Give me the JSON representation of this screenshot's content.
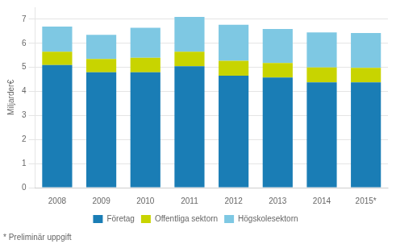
{
  "chart_data": {
    "type": "bar",
    "stacked": true,
    "categories": [
      "2008",
      "2009",
      "2010",
      "2011",
      "2012",
      "2013",
      "2014",
      "2015*"
    ],
    "series": [
      {
        "name": "Företag",
        "color": "#1a7db5",
        "values": [
          5.1,
          4.8,
          4.8,
          5.05,
          4.65,
          4.58,
          4.38,
          4.38
        ]
      },
      {
        "name": "Offentliga sektorn",
        "color": "#c8d400",
        "values": [
          0.55,
          0.55,
          0.6,
          0.6,
          0.62,
          0.6,
          0.62,
          0.6
        ]
      },
      {
        "name": "Högskolesektorn",
        "color": "#7ec8e3",
        "values": [
          1.05,
          1.0,
          1.25,
          1.45,
          1.5,
          1.42,
          1.45,
          1.45
        ]
      }
    ],
    "ylabel": "Miljarder€",
    "ylim": [
      0,
      7.5
    ],
    "yticks": [
      0,
      1,
      2,
      3,
      4,
      5,
      6,
      7
    ],
    "grid": true,
    "legend": "bottom",
    "annotations": [
      "* Preliminär uppgift"
    ]
  }
}
